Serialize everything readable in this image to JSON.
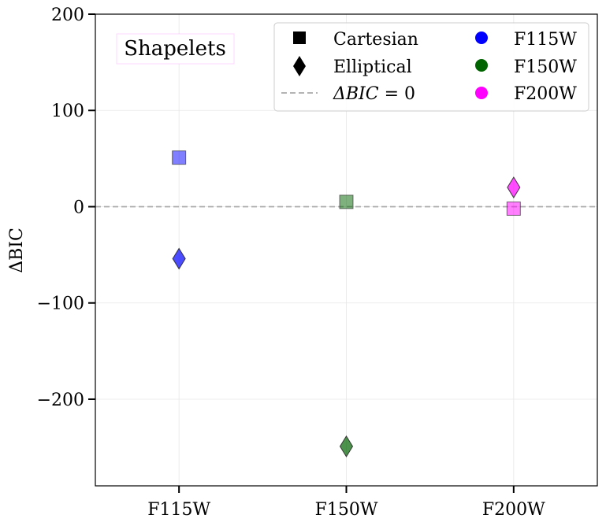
{
  "chart_data": {
    "type": "scatter",
    "title": "",
    "xlabel": "",
    "ylabel": "ΔBIC",
    "categories": [
      "F115W",
      "F150W",
      "F200W"
    ],
    "ylim": [
      -290,
      200
    ],
    "yticks": [
      200,
      100,
      0,
      -100,
      -200
    ],
    "ytick_labels": [
      "200",
      "100",
      "0",
      "−100",
      "−200"
    ],
    "grid": true,
    "reference_line": {
      "y": 0,
      "label": "ΔBIC = 0",
      "style": "dashed",
      "color": "#aaaaaa"
    },
    "annotation": "Shapelets",
    "colors": {
      "F115W": "#0000ff",
      "F150W": "#006400",
      "F200W": "#ff00ff"
    },
    "series": [
      {
        "name": "Cartesian",
        "marker": "square",
        "alpha": 0.5,
        "values": [
          51,
          5,
          -2
        ]
      },
      {
        "name": "Elliptical",
        "marker": "diamond",
        "alpha": 0.7,
        "values": [
          -54,
          -249,
          20
        ]
      }
    ],
    "legend": {
      "position": "top-right",
      "markers": [
        {
          "label": "Cartesian",
          "symbol": "square"
        },
        {
          "label": "Elliptical",
          "symbol": "diamond"
        },
        {
          "label": "ΔBIC = 0",
          "math_main": "ΔBIC",
          "math_rest": " = 0",
          "symbol": "dashed-line"
        }
      ],
      "filters": [
        {
          "label": "F115W",
          "color": "#0000ff"
        },
        {
          "label": "F150W",
          "color": "#006400"
        },
        {
          "label": "F200W",
          "color": "#ff00ff"
        }
      ]
    }
  }
}
